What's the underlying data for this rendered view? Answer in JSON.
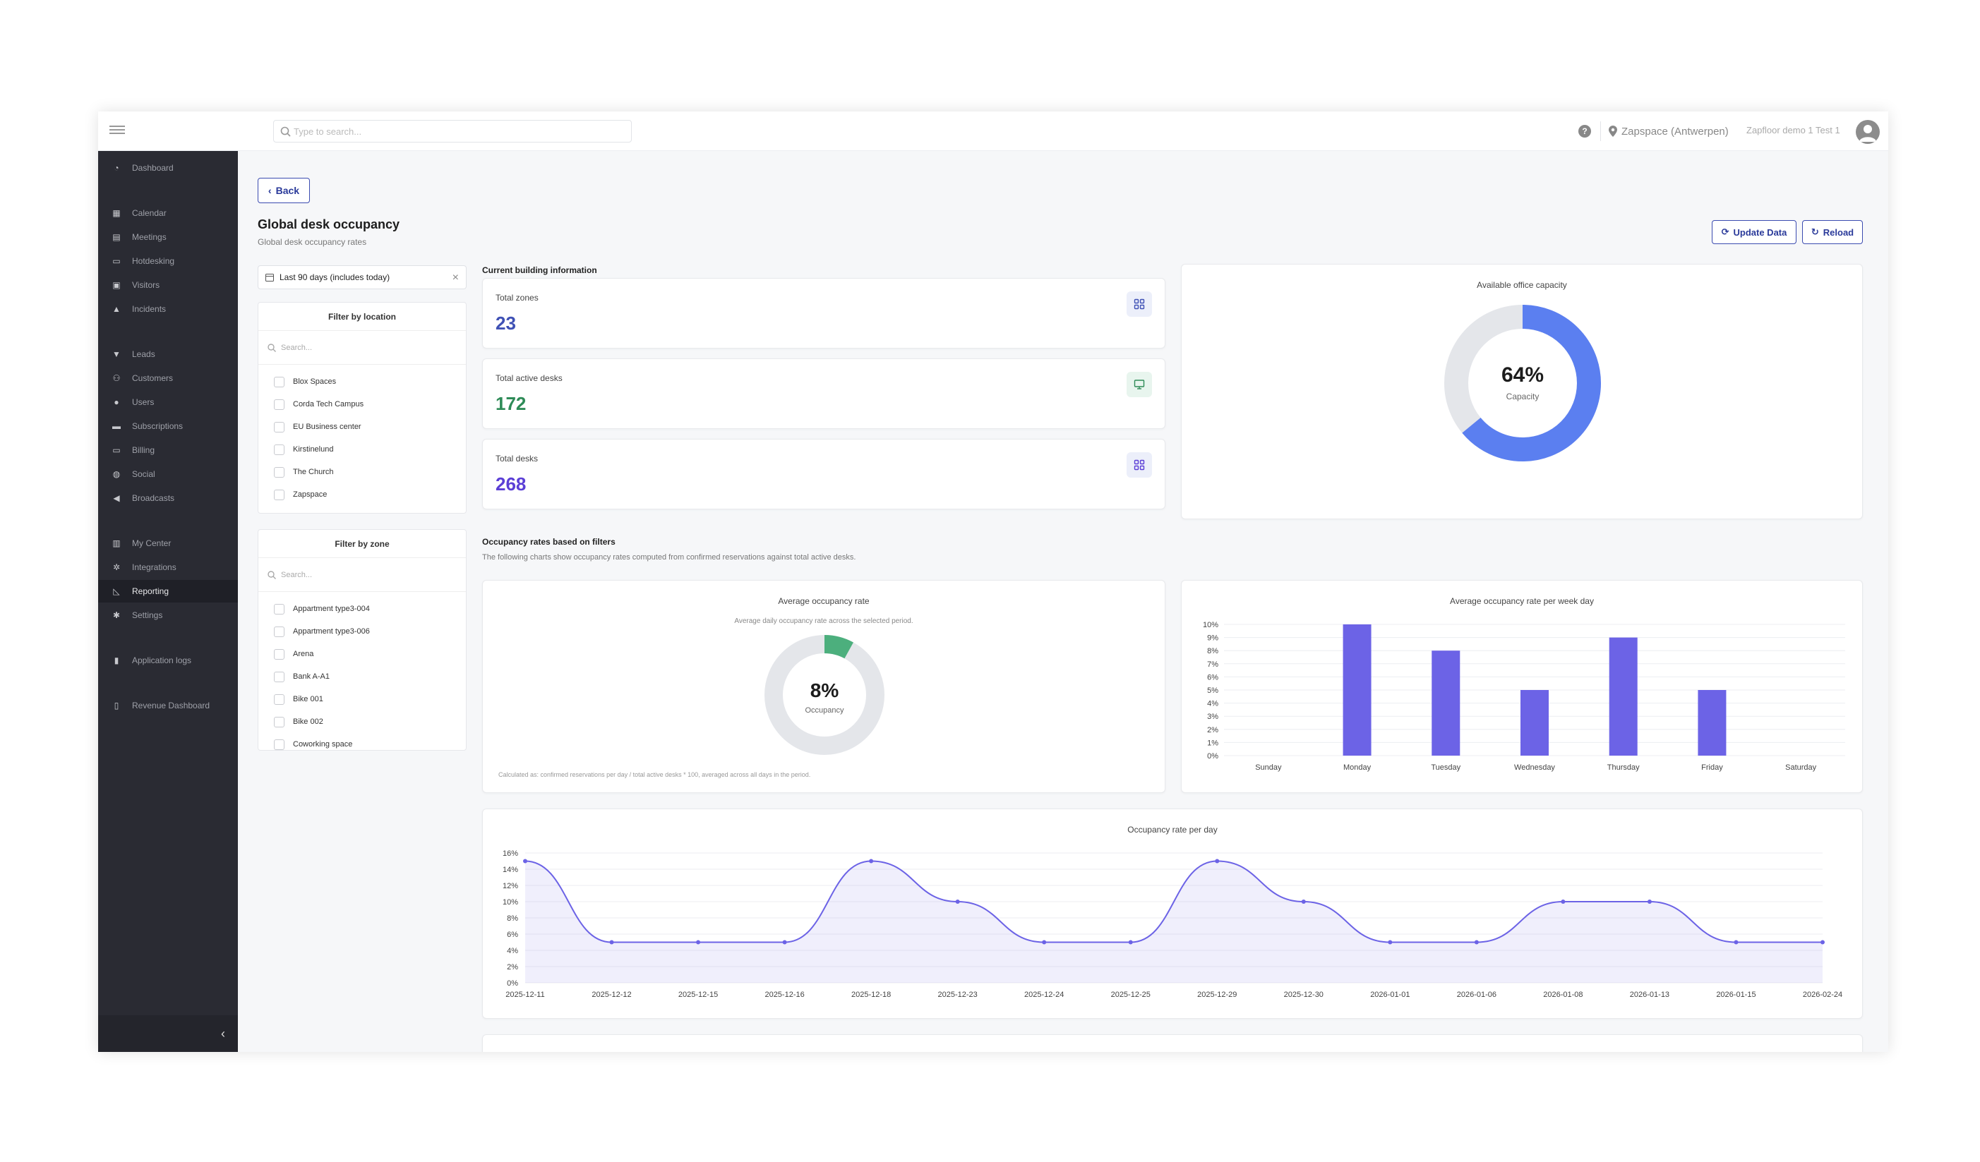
{
  "topbar": {
    "search_placeholder": "Type to search...",
    "location": "Zapspace (Antwerpen)",
    "user": "Zapfloor demo 1 Test 1"
  },
  "sidebar": {
    "items": [
      {
        "label": "Dashboard",
        "icon": "dashboard-icon"
      },
      {
        "label": "Calendar",
        "icon": "calendar-icon"
      },
      {
        "label": "Meetings",
        "icon": "meetings-icon"
      },
      {
        "label": "Hotdesking",
        "icon": "monitor-icon"
      },
      {
        "label": "Visitors",
        "icon": "badge-icon"
      },
      {
        "label": "Incidents",
        "icon": "warning-icon"
      },
      {
        "label": "Leads",
        "icon": "funnel-icon"
      },
      {
        "label": "Customers",
        "icon": "users-icon"
      },
      {
        "label": "Users",
        "icon": "user-icon"
      },
      {
        "label": "Subscriptions",
        "icon": "stack-icon"
      },
      {
        "label": "Billing",
        "icon": "credit-card-icon"
      },
      {
        "label": "Social",
        "icon": "globe-icon"
      },
      {
        "label": "Broadcasts",
        "icon": "megaphone-icon"
      },
      {
        "label": "My Center",
        "icon": "building-icon"
      },
      {
        "label": "Integrations",
        "icon": "integrations-icon"
      },
      {
        "label": "Reporting",
        "icon": "chart-icon"
      },
      {
        "label": "Settings",
        "icon": "gears-icon"
      },
      {
        "label": "Application logs",
        "icon": "file-icon"
      },
      {
        "label": "Revenue Dashboard",
        "icon": "bar-chart-icon"
      }
    ]
  },
  "page": {
    "back": "Back",
    "title": "Global desk occupancy",
    "subtitle": "Global desk occupancy rates",
    "update_data": "Update Data",
    "reload": "Reload",
    "date_filter": "Last 90 days (includes today)"
  },
  "filters": {
    "location": {
      "title": "Filter by location",
      "search_placeholder": "Search...",
      "options": [
        "Blox Spaces",
        "Corda Tech Campus",
        "EU Business center",
        "Kirstinelund",
        "The Church",
        "Zapspace"
      ]
    },
    "zone": {
      "title": "Filter by zone",
      "search_placeholder": "Search...",
      "options": [
        "Appartment type3-004",
        "Appartment type3-006",
        "Arena",
        "Bank A-A1",
        "Bike 001",
        "Bike 002",
        "Coworking space"
      ]
    }
  },
  "building": {
    "section_title": "Current building information",
    "stats": [
      {
        "label": "Total zones",
        "value": "23",
        "color": "#3f51b5",
        "icon": "grid-icon"
      },
      {
        "label": "Total active desks",
        "value": "172",
        "color": "#2e8b57",
        "icon": "monitor-icon"
      },
      {
        "label": "Total desks",
        "value": "268",
        "color": "#5b3fd6",
        "icon": "grid-icon"
      }
    ],
    "capacity": {
      "title": "Available office capacity",
      "value_text": "64%",
      "value": 64,
      "label": "Capacity",
      "color": "#5b7ff0"
    }
  },
  "occupancy": {
    "section_title": "Occupancy rates based on filters",
    "section_sub": "The following charts show occupancy rates computed from confirmed reservations against total active desks.",
    "average": {
      "title": "Average occupancy rate",
      "subtitle": "Average daily occupancy rate across the selected period.",
      "value_text": "8%",
      "value": 8,
      "label": "Occupancy",
      "color": "#4caf7d",
      "footnote": "Calculated as: confirmed reservations per day / total active desks * 100, averaged across all days in the period."
    }
  },
  "chart_data": [
    {
      "type": "bar",
      "title": "Average occupancy rate per week day",
      "categories": [
        "Sunday",
        "Monday",
        "Tuesday",
        "Wednesday",
        "Thursday",
        "Friday",
        "Saturday"
      ],
      "values": [
        0,
        10,
        8,
        5,
        9,
        5,
        0
      ],
      "yticks": [
        "0%",
        "1%",
        "2%",
        "3%",
        "4%",
        "5%",
        "6%",
        "7%",
        "8%",
        "9%",
        "10%"
      ],
      "ylim": [
        0,
        10
      ],
      "color": "#6c63e6"
    },
    {
      "type": "area",
      "title": "Occupancy rate per day",
      "x": [
        "2025-12-11",
        "2025-12-12",
        "2025-12-15",
        "2025-12-16",
        "2025-12-18",
        "2025-12-23",
        "2025-12-24",
        "2025-12-25",
        "2025-12-29",
        "2025-12-30",
        "2026-01-01",
        "2026-01-06",
        "2026-01-08",
        "2026-01-13",
        "2026-01-15",
        "2026-02-24"
      ],
      "values": [
        15,
        5,
        5,
        5,
        15,
        10,
        5,
        5,
        15,
        10,
        5,
        5,
        10,
        10,
        5,
        5
      ],
      "yticks": [
        "0%",
        "2%",
        "4%",
        "6%",
        "8%",
        "10%",
        "12%",
        "14%",
        "16%"
      ],
      "ylim": [
        0,
        16
      ],
      "color": "#6c63e6"
    }
  ]
}
